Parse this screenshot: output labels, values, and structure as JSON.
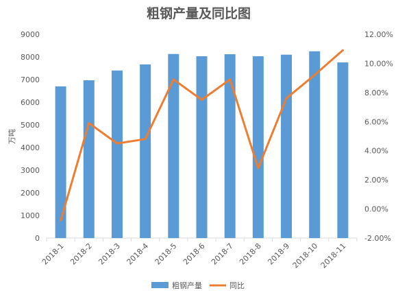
{
  "chart_data": {
    "type": "bar",
    "title": "粗钢产量及同比图",
    "categories": [
      "2018-1",
      "2018-2",
      "2018-3",
      "2018-4",
      "2018-5",
      "2018-6",
      "2018-7",
      "2018-8",
      "2018-9",
      "2018-10",
      "2018-11"
    ],
    "series": [
      {
        "name": "粗钢产量",
        "type": "bar",
        "axis": "left",
        "color": "#5B9BD5",
        "values": [
          6700,
          6970,
          7400,
          7670,
          8130,
          8030,
          8120,
          8030,
          8100,
          8250,
          7760
        ]
      },
      {
        "name": "同比",
        "type": "line",
        "axis": "right",
        "color": "#ED7D31",
        "unit": "%",
        "values": [
          -0.8,
          5.9,
          4.5,
          4.8,
          8.9,
          7.5,
          8.9,
          2.8,
          7.6,
          9.2,
          10.9
        ]
      }
    ],
    "xlabel": "",
    "ylabel": "万吨",
    "ylim": [
      0,
      9000
    ],
    "yticks": [
      0,
      1000,
      2000,
      3000,
      4000,
      5000,
      6000,
      7000,
      8000,
      9000
    ],
    "ytick_labels": [
      "0",
      "1000",
      "2000",
      "3000",
      "4000",
      "5000",
      "6000",
      "7000",
      "8000",
      "9000"
    ],
    "y2lim": [
      -2,
      12
    ],
    "y2ticks": [
      -2,
      0,
      2,
      4,
      6,
      8,
      10,
      12
    ],
    "y2tick_labels": [
      "-2.00%",
      "0.00%",
      "2.00%",
      "4.00%",
      "6.00%",
      "8.00%",
      "10.00%",
      "12.00%"
    ],
    "grid": false,
    "legend": "bottom",
    "axis_color": "#D9D9D9"
  }
}
